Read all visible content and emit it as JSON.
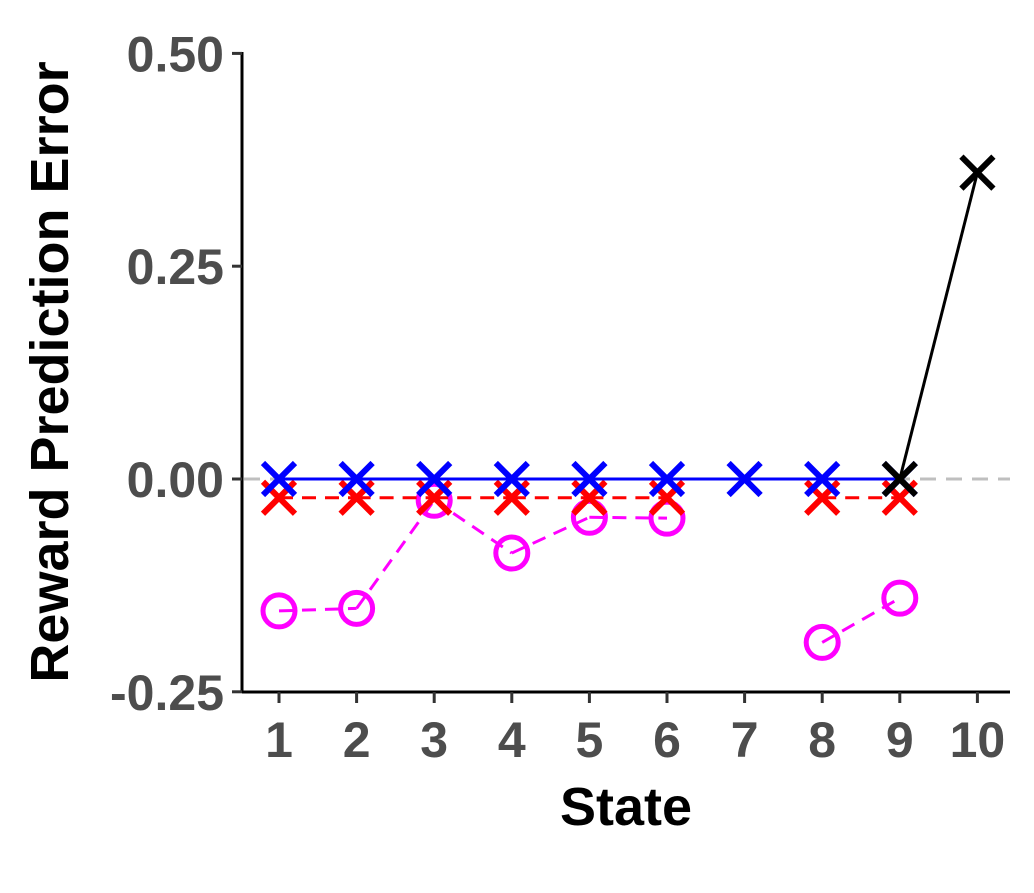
{
  "chart_data": {
    "type": "line",
    "title": "",
    "xlabel": "State",
    "ylabel": "Reward Prediction Error",
    "x": [
      1,
      2,
      3,
      4,
      5,
      6,
      7,
      8,
      9,
      10
    ],
    "xticks": [
      "1",
      "2",
      "3",
      "4",
      "5",
      "6",
      "7",
      "8",
      "9",
      "10"
    ],
    "yticks": [
      "-0.25",
      "0.00",
      "0.25",
      "0.50"
    ],
    "ylim": [
      -0.25,
      0.5
    ],
    "xlim": [
      1,
      10
    ],
    "reference_line": {
      "y": 0,
      "style": "dashed",
      "color": "#bfbfbf"
    },
    "series": [
      {
        "marker": "cross",
        "line": "dashed",
        "color": "#ff00ff",
        "marker_shape": "circle",
        "values": [
          -0.155,
          -0.152,
          -0.025,
          -0.087,
          -0.045,
          -0.046,
          null,
          -0.192,
          -0.14,
          null
        ]
      },
      {
        "marker": "cross",
        "line": "dashed",
        "color": "#ff0000",
        "values": [
          -0.022,
          -0.022,
          -0.022,
          -0.022,
          -0.022,
          -0.022,
          null,
          -0.022,
          -0.022,
          null
        ]
      },
      {
        "marker": "cross",
        "line": "solid",
        "color": "#0000ff",
        "values": [
          0,
          0,
          0,
          0,
          0,
          0,
          0,
          0,
          0,
          null
        ]
      },
      {
        "marker": "cross",
        "line": "solid",
        "color": "#000000",
        "values": [
          null,
          null,
          null,
          null,
          null,
          null,
          null,
          null,
          0,
          0.36
        ]
      }
    ],
    "grid": false,
    "legend": "none"
  }
}
